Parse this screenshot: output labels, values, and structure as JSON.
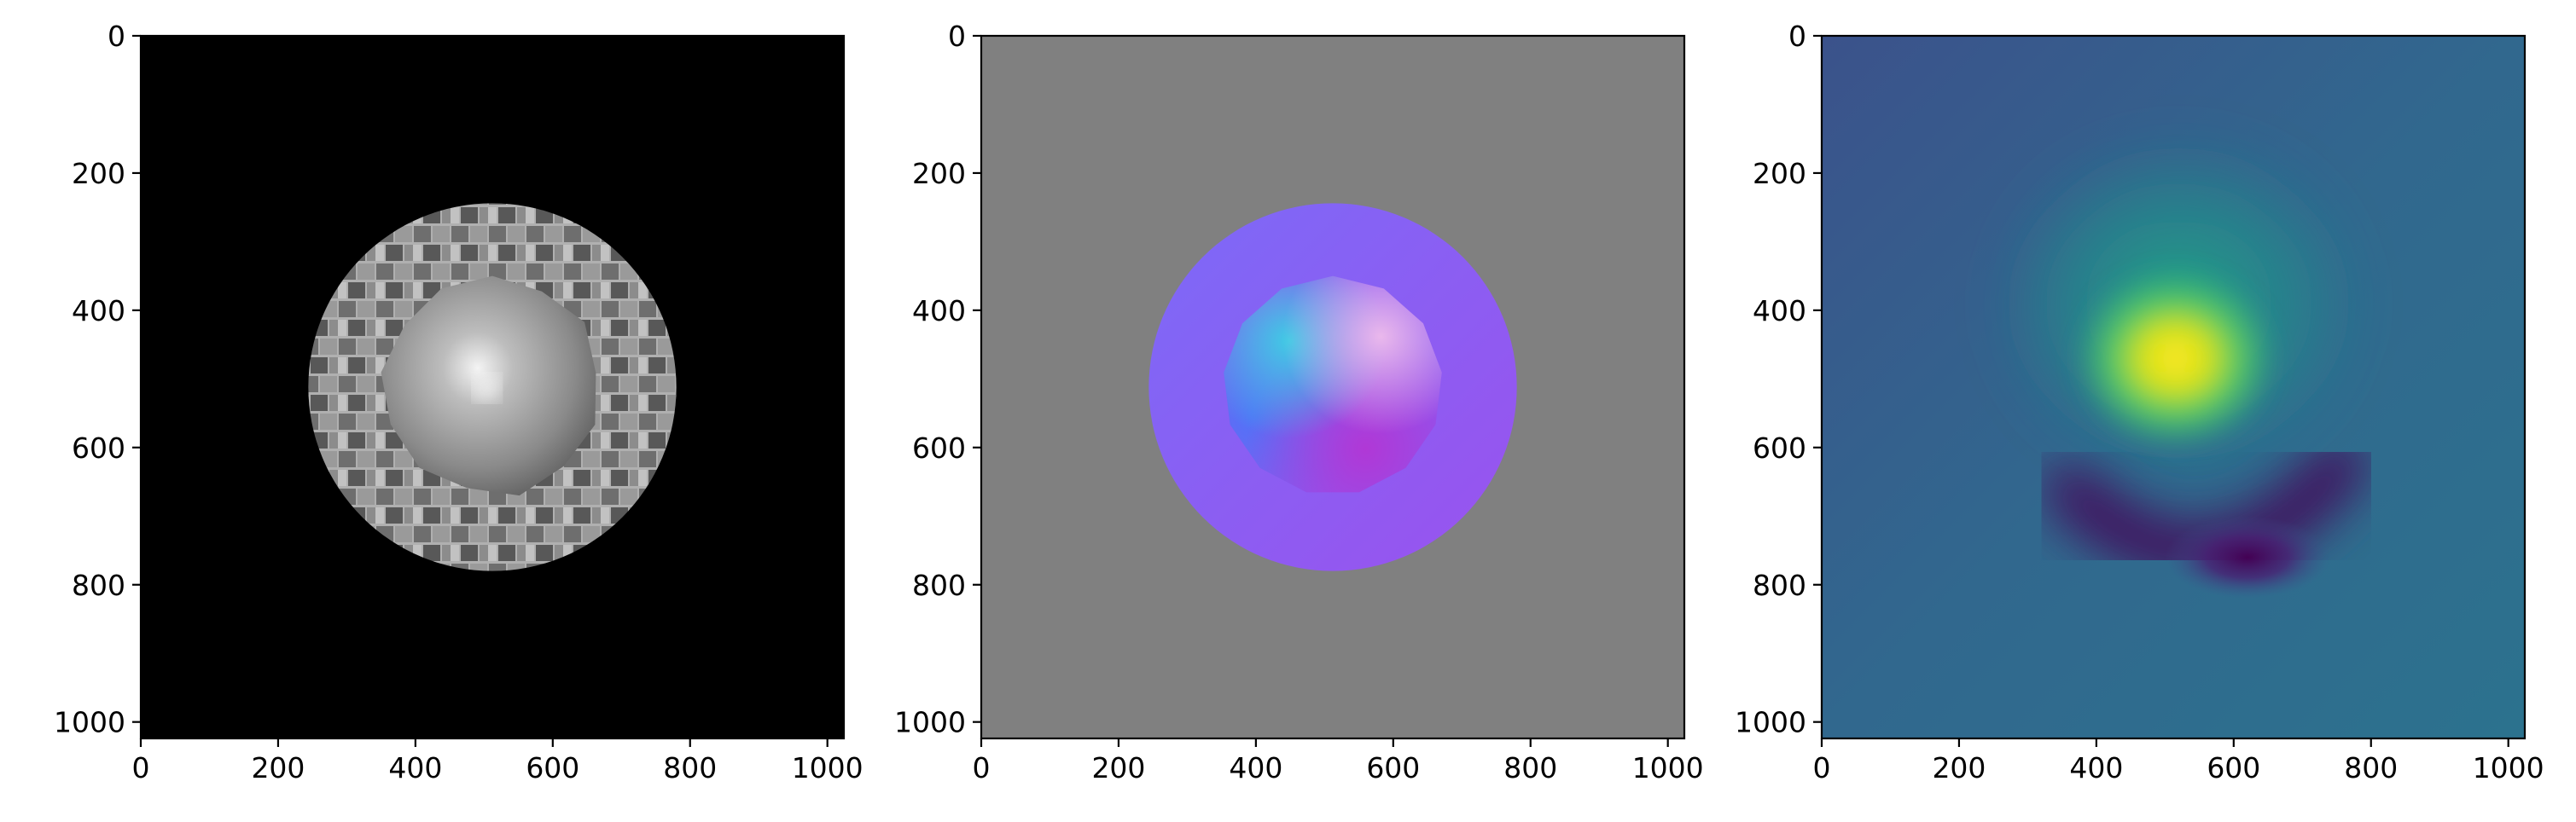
{
  "chart_data": [
    {
      "type": "image",
      "image": "grayscale brick-textured disc with shaded dome in the center, on black background",
      "colormap": "gray",
      "xlim": [
        0,
        1024
      ],
      "ylim": [
        1024,
        0
      ],
      "xticks": [
        0,
        200,
        400,
        600,
        800,
        1000
      ],
      "yticks": [
        0,
        200,
        400,
        600,
        800,
        1000
      ],
      "disc": {
        "cx": 512,
        "cy": 512,
        "r": 268
      },
      "dome": {
        "cx": 512,
        "cy": 510,
        "r": 160
      },
      "colors": {
        "background": "#000000",
        "disc": "#b4b4b4",
        "brick_dark": "#5a5a5a",
        "brick_mid": "#8a8a8a",
        "dome": "#9c9c9c",
        "highlight": "#f4f4f4"
      }
    },
    {
      "type": "image",
      "image": "normal map: violet disc with cyan/magenta-shaded dome on gray background",
      "colormap": "rgb",
      "xlim": [
        0,
        1024
      ],
      "ylim": [
        1024,
        0
      ],
      "xticks": [
        0,
        200,
        400,
        600,
        800,
        1000
      ],
      "yticks": [
        0,
        200,
        400,
        600,
        800,
        1000
      ],
      "disc": {
        "cx": 512,
        "cy": 512,
        "r": 268
      },
      "dome": {
        "cx": 512,
        "cy": 510,
        "r": 160
      },
      "colors": {
        "background": "#808080",
        "disc": "#8a5cf5",
        "cyan": "#3fc8e8",
        "blue": "#5a6cf5",
        "magenta": "#b040d8",
        "pink": "#e6b2e8"
      }
    },
    {
      "type": "heatmap",
      "image": "smooth scalar field with bright peak near center and dark trough below-right",
      "colormap": "viridis",
      "xlim": [
        0,
        1024
      ],
      "ylim": [
        1024,
        0
      ],
      "xticks": [
        0,
        200,
        400,
        600,
        800,
        1000
      ],
      "yticks": [
        0,
        200,
        400,
        600,
        800,
        1000
      ],
      "peak": {
        "x": 515,
        "y": 470
      },
      "trough": {
        "x": 620,
        "y": 760
      },
      "colors": {
        "background": "#32738c",
        "mid": "#21918c",
        "green": "#5ec962",
        "yellow": "#fde725",
        "dark": "#440154"
      }
    }
  ]
}
